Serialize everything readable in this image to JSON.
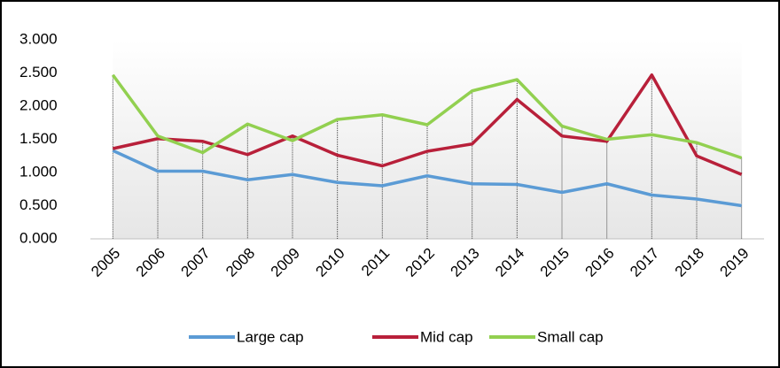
{
  "chart_data": {
    "type": "line",
    "categories": [
      "2005",
      "2006",
      "2007",
      "2008",
      "2009",
      "2010",
      "2011",
      "2012",
      "2013",
      "2014",
      "2015",
      "2016",
      "2017",
      "2018",
      "2019"
    ],
    "series": [
      {
        "name": "Large cap",
        "color": "#5b9bd5",
        "values": [
          1.33,
          1.02,
          1.02,
          0.89,
          0.97,
          0.85,
          0.8,
          0.95,
          0.83,
          0.82,
          0.7,
          0.83,
          0.66,
          0.6,
          0.5
        ]
      },
      {
        "name": "Mid cap",
        "color": "#b8203a",
        "values": [
          1.36,
          1.51,
          1.47,
          1.27,
          1.55,
          1.26,
          1.1,
          1.32,
          1.43,
          2.1,
          1.55,
          1.47,
          2.47,
          1.25,
          0.97
        ]
      },
      {
        "name": "Small cap",
        "color": "#92d050",
        "values": [
          2.47,
          1.55,
          1.3,
          1.73,
          1.48,
          1.8,
          1.87,
          1.72,
          2.23,
          2.4,
          1.7,
          1.5,
          1.57,
          1.45,
          1.22
        ]
      }
    ],
    "ylim": [
      0,
      3
    ],
    "yticks": [
      {
        "value": 0,
        "label": "0.000"
      },
      {
        "value": 0.5,
        "label": "0.500"
      },
      {
        "value": 1,
        "label": "1.000"
      },
      {
        "value": 1.5,
        "label": "1.500"
      },
      {
        "value": 2,
        "label": "2.000"
      },
      {
        "value": 2.5,
        "label": "2.500"
      },
      {
        "value": 3,
        "label": "3.000"
      }
    ],
    "grid": false,
    "legend": "bottom"
  }
}
